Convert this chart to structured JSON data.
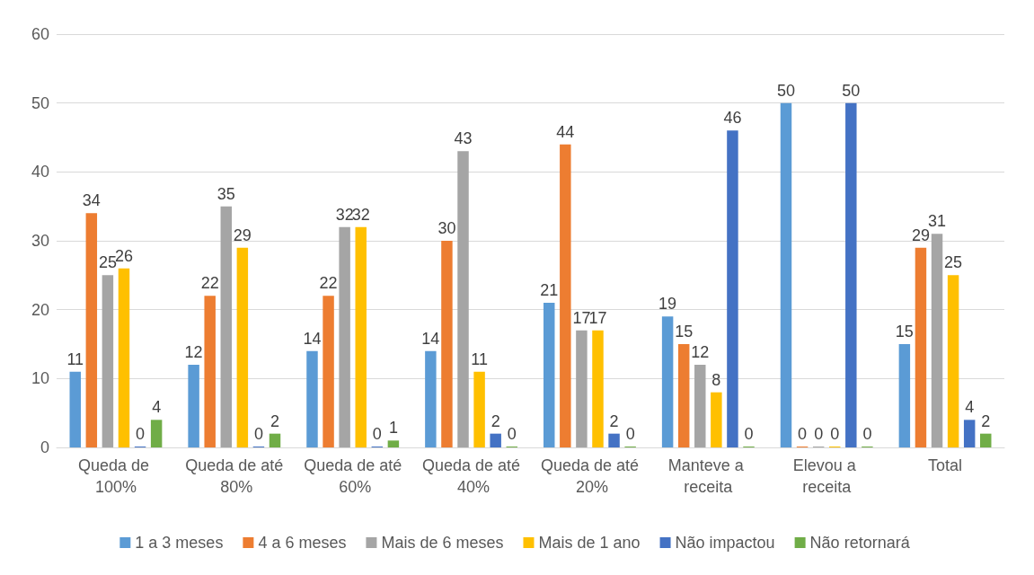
{
  "chart_data": {
    "type": "bar",
    "categories": [
      "Queda de 100%",
      "Queda de até 80%",
      "Queda de até 60%",
      "Queda de até 40%",
      "Queda de até 20%",
      "Manteve a receita",
      "Elevou a receita",
      "Total"
    ],
    "series": [
      {
        "name": "1 a 3 meses",
        "color": "#5b9bd5",
        "values": [
          11,
          12,
          14,
          14,
          21,
          19,
          50,
          15
        ]
      },
      {
        "name": "4 a 6 meses",
        "color": "#ed7d31",
        "values": [
          34,
          22,
          22,
          30,
          44,
          15,
          0,
          29
        ]
      },
      {
        "name": "Mais de 6 meses",
        "color": "#a5a5a5",
        "values": [
          25,
          35,
          32,
          43,
          17,
          12,
          0,
          31
        ]
      },
      {
        "name": "Mais de 1 ano",
        "color": "#ffc000",
        "values": [
          26,
          29,
          32,
          11,
          17,
          8,
          0,
          25
        ]
      },
      {
        "name": "Não impactou",
        "color": "#4472c4",
        "values": [
          0,
          0,
          0,
          2,
          2,
          46,
          50,
          4
        ]
      },
      {
        "name": "Não retornará",
        "color": "#70ad47",
        "values": [
          4,
          2,
          1,
          0,
          0,
          0,
          0,
          2
        ]
      }
    ],
    "ylim": [
      0,
      60
    ],
    "yticks": [
      0,
      10,
      20,
      30,
      40,
      50,
      60
    ],
    "grid": "y",
    "legend": "bottom",
    "data_labels": true
  }
}
